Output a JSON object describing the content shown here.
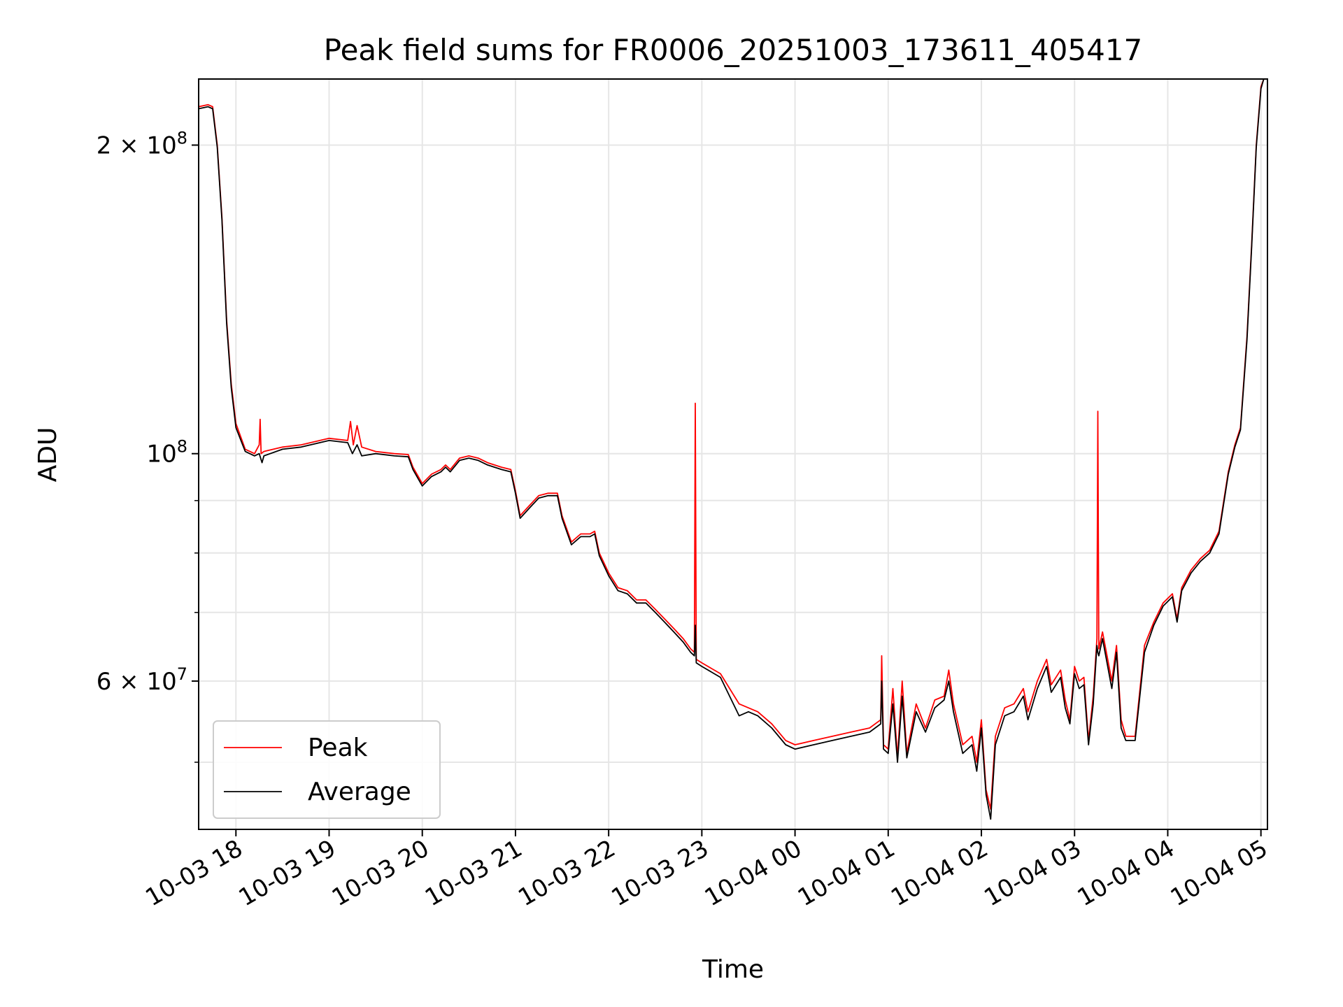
{
  "chart_data": {
    "type": "line",
    "title": "Peak field sums for FR0006_20251003_173611_405417",
    "xlabel": "Time",
    "ylabel": "ADU",
    "yscale": "log",
    "ylim": [
      43000000,
      232000000
    ],
    "xlim_hours": [
      17.6,
      29.07
    ],
    "grid": true,
    "legend_loc": "lower left",
    "x_ticks": [
      {
        "label": "10-03 18",
        "hour": 18
      },
      {
        "label": "10-03 19",
        "hour": 19
      },
      {
        "label": "10-03 20",
        "hour": 20
      },
      {
        "label": "10-03 21",
        "hour": 21
      },
      {
        "label": "10-03 22",
        "hour": 22
      },
      {
        "label": "10-03 23",
        "hour": 23
      },
      {
        "label": "10-04 00",
        "hour": 24
      },
      {
        "label": "10-04 01",
        "hour": 25
      },
      {
        "label": "10-04 02",
        "hour": 26
      },
      {
        "label": "10-04 03",
        "hour": 27
      },
      {
        "label": "10-04 04",
        "hour": 28
      },
      {
        "label": "10-04 05",
        "hour": 29
      }
    ],
    "y_major_ticks": [
      {
        "value": 60000000,
        "base": "6 × 10",
        "exp": "7"
      },
      {
        "value": 100000000,
        "base": "10",
        "exp": "8"
      },
      {
        "value": 200000000,
        "base": "2 × 10",
        "exp": "8"
      }
    ],
    "y_minor_ticks": [
      50000000,
      70000000,
      80000000,
      90000000
    ],
    "series": [
      {
        "name": "Peak",
        "color": "#ff0000",
        "points": [
          [
            17.6,
            218000000
          ],
          [
            17.7,
            219000000
          ],
          [
            17.75,
            218000000
          ],
          [
            17.8,
            200000000
          ],
          [
            17.85,
            170000000
          ],
          [
            17.9,
            135000000
          ],
          [
            17.95,
            117000000
          ],
          [
            18.0,
            107000000
          ],
          [
            18.1,
            101000000
          ],
          [
            18.2,
            100000000
          ],
          [
            18.25,
            102000000
          ],
          [
            18.26,
            108000000
          ],
          [
            18.27,
            100000000
          ],
          [
            18.3,
            100500000
          ],
          [
            18.5,
            101500000
          ],
          [
            18.7,
            102000000
          ],
          [
            18.9,
            103000000
          ],
          [
            19.0,
            103500000
          ],
          [
            19.2,
            103000000
          ],
          [
            19.23,
            107500000
          ],
          [
            19.26,
            102000000
          ],
          [
            19.3,
            106500000
          ],
          [
            19.35,
            101500000
          ],
          [
            19.5,
            100500000
          ],
          [
            19.7,
            100000000
          ],
          [
            19.85,
            99800000
          ],
          [
            19.9,
            97000000
          ],
          [
            20.0,
            93500000
          ],
          [
            20.1,
            95500000
          ],
          [
            20.2,
            96500000
          ],
          [
            20.25,
            97500000
          ],
          [
            20.3,
            96500000
          ],
          [
            20.4,
            99000000
          ],
          [
            20.5,
            99500000
          ],
          [
            20.6,
            99000000
          ],
          [
            20.7,
            98000000
          ],
          [
            20.85,
            97000000
          ],
          [
            20.95,
            96500000
          ],
          [
            21.0,
            92000000
          ],
          [
            21.05,
            87000000
          ],
          [
            21.15,
            89000000
          ],
          [
            21.25,
            91000000
          ],
          [
            21.35,
            91500000
          ],
          [
            21.45,
            91500000
          ],
          [
            21.5,
            87000000
          ],
          [
            21.6,
            82000000
          ],
          [
            21.7,
            83500000
          ],
          [
            21.8,
            83500000
          ],
          [
            21.85,
            84000000
          ],
          [
            21.9,
            80000000
          ],
          [
            22.0,
            76500000
          ],
          [
            22.1,
            74000000
          ],
          [
            22.2,
            73500000
          ],
          [
            22.3,
            72000000
          ],
          [
            22.4,
            72000000
          ],
          [
            22.5,
            70500000
          ],
          [
            22.6,
            69000000
          ],
          [
            22.7,
            67500000
          ],
          [
            22.8,
            66000000
          ],
          [
            22.88,
            64500000
          ],
          [
            22.92,
            64000000
          ],
          [
            22.93,
            112000000
          ],
          [
            22.94,
            63000000
          ],
          [
            23.0,
            62500000
          ],
          [
            23.2,
            61000000
          ],
          [
            23.4,
            57000000
          ],
          [
            23.5,
            56500000
          ],
          [
            23.6,
            56000000
          ],
          [
            23.75,
            54500000
          ],
          [
            23.9,
            52500000
          ],
          [
            24.0,
            52000000
          ],
          [
            24.2,
            52500000
          ],
          [
            24.4,
            53000000
          ],
          [
            24.6,
            53500000
          ],
          [
            24.8,
            54000000
          ],
          [
            24.92,
            55000000
          ],
          [
            24.93,
            63500000
          ],
          [
            24.95,
            52000000
          ],
          [
            25.0,
            51500000
          ],
          [
            25.05,
            59000000
          ],
          [
            25.1,
            50500000
          ],
          [
            25.15,
            60000000
          ],
          [
            25.2,
            51000000
          ],
          [
            25.3,
            57000000
          ],
          [
            25.4,
            54000000
          ],
          [
            25.5,
            57500000
          ],
          [
            25.6,
            58000000
          ],
          [
            25.65,
            61500000
          ],
          [
            25.7,
            57000000
          ],
          [
            25.8,
            52000000
          ],
          [
            25.9,
            53000000
          ],
          [
            25.95,
            50000000
          ],
          [
            26.0,
            55000000
          ],
          [
            26.05,
            47000000
          ],
          [
            26.1,
            45000000
          ],
          [
            26.15,
            53000000
          ],
          [
            26.25,
            56500000
          ],
          [
            26.35,
            57000000
          ],
          [
            26.45,
            59000000
          ],
          [
            26.5,
            56000000
          ],
          [
            26.6,
            60000000
          ],
          [
            26.7,
            63000000
          ],
          [
            26.75,
            59500000
          ],
          [
            26.85,
            61500000
          ],
          [
            26.9,
            57500000
          ],
          [
            26.95,
            55000000
          ],
          [
            27.0,
            62000000
          ],
          [
            27.05,
            60000000
          ],
          [
            27.1,
            60500000
          ],
          [
            27.15,
            52500000
          ],
          [
            27.2,
            58000000
          ],
          [
            27.24,
            66000000
          ],
          [
            27.25,
            110000000
          ],
          [
            27.26,
            64500000
          ],
          [
            27.3,
            67000000
          ],
          [
            27.4,
            60000000
          ],
          [
            27.45,
            65000000
          ],
          [
            27.5,
            55000000
          ],
          [
            27.55,
            53000000
          ],
          [
            27.65,
            53000000
          ],
          [
            27.75,
            65000000
          ],
          [
            27.85,
            68500000
          ],
          [
            27.95,
            71500000
          ],
          [
            28.05,
            73000000
          ],
          [
            28.1,
            69000000
          ],
          [
            28.15,
            74000000
          ],
          [
            28.25,
            77000000
          ],
          [
            28.35,
            79000000
          ],
          [
            28.45,
            80500000
          ],
          [
            28.55,
            84000000
          ],
          [
            28.65,
            96000000
          ],
          [
            28.72,
            102000000
          ],
          [
            28.78,
            106000000
          ],
          [
            28.85,
            130000000
          ],
          [
            28.9,
            160000000
          ],
          [
            28.95,
            200000000
          ],
          [
            29.0,
            228000000
          ],
          [
            29.03,
            232000000
          ]
        ]
      },
      {
        "name": "Average",
        "color": "#000000",
        "points": [
          [
            17.6,
            217000000
          ],
          [
            17.7,
            218000000
          ],
          [
            17.75,
            217000000
          ],
          [
            17.8,
            199000000
          ],
          [
            17.85,
            169000000
          ],
          [
            17.9,
            134000000
          ],
          [
            17.95,
            116000000
          ],
          [
            18.0,
            106000000
          ],
          [
            18.1,
            100500000
          ],
          [
            18.2,
            99500000
          ],
          [
            18.25,
            100000000
          ],
          [
            18.28,
            98000000
          ],
          [
            18.3,
            99500000
          ],
          [
            18.5,
            101000000
          ],
          [
            18.7,
            101500000
          ],
          [
            18.9,
            102500000
          ],
          [
            19.0,
            103000000
          ],
          [
            19.2,
            102500000
          ],
          [
            19.25,
            100000000
          ],
          [
            19.3,
            102000000
          ],
          [
            19.35,
            99500000
          ],
          [
            19.5,
            100000000
          ],
          [
            19.7,
            99500000
          ],
          [
            19.85,
            99300000
          ],
          [
            19.9,
            96500000
          ],
          [
            20.0,
            93000000
          ],
          [
            20.1,
            95000000
          ],
          [
            20.2,
            96000000
          ],
          [
            20.25,
            97000000
          ],
          [
            20.3,
            96000000
          ],
          [
            20.4,
            98500000
          ],
          [
            20.5,
            99000000
          ],
          [
            20.6,
            98500000
          ],
          [
            20.7,
            97500000
          ],
          [
            20.85,
            96500000
          ],
          [
            20.95,
            96000000
          ],
          [
            21.0,
            91500000
          ],
          [
            21.05,
            86500000
          ],
          [
            21.15,
            88500000
          ],
          [
            21.25,
            90500000
          ],
          [
            21.35,
            91000000
          ],
          [
            21.45,
            91000000
          ],
          [
            21.5,
            86500000
          ],
          [
            21.6,
            81500000
          ],
          [
            21.7,
            83000000
          ],
          [
            21.8,
            83000000
          ],
          [
            21.85,
            83500000
          ],
          [
            21.9,
            79500000
          ],
          [
            22.0,
            76000000
          ],
          [
            22.1,
            73500000
          ],
          [
            22.2,
            73000000
          ],
          [
            22.3,
            71500000
          ],
          [
            22.4,
            71500000
          ],
          [
            22.5,
            70000000
          ],
          [
            22.6,
            68500000
          ],
          [
            22.7,
            67000000
          ],
          [
            22.8,
            65500000
          ],
          [
            22.88,
            64000000
          ],
          [
            22.92,
            63500000
          ],
          [
            22.93,
            68000000
          ],
          [
            22.94,
            62500000
          ],
          [
            23.0,
            62000000
          ],
          [
            23.2,
            60500000
          ],
          [
            23.4,
            55500000
          ],
          [
            23.5,
            56000000
          ],
          [
            23.6,
            55500000
          ],
          [
            23.75,
            54000000
          ],
          [
            23.9,
            52000000
          ],
          [
            24.0,
            51500000
          ],
          [
            24.2,
            52000000
          ],
          [
            24.4,
            52500000
          ],
          [
            24.6,
            53000000
          ],
          [
            24.8,
            53500000
          ],
          [
            24.92,
            54500000
          ],
          [
            24.93,
            60000000
          ],
          [
            24.95,
            51500000
          ],
          [
            25.0,
            51000000
          ],
          [
            25.05,
            57000000
          ],
          [
            25.1,
            50000000
          ],
          [
            25.15,
            58000000
          ],
          [
            25.2,
            50500000
          ],
          [
            25.3,
            56000000
          ],
          [
            25.4,
            53500000
          ],
          [
            25.5,
            56500000
          ],
          [
            25.6,
            57500000
          ],
          [
            25.65,
            60000000
          ],
          [
            25.7,
            56000000
          ],
          [
            25.8,
            51000000
          ],
          [
            25.9,
            52000000
          ],
          [
            25.95,
            49000000
          ],
          [
            26.0,
            54000000
          ],
          [
            26.05,
            46500000
          ],
          [
            26.1,
            44000000
          ],
          [
            26.15,
            52000000
          ],
          [
            26.25,
            55500000
          ],
          [
            26.35,
            56000000
          ],
          [
            26.45,
            58000000
          ],
          [
            26.5,
            55000000
          ],
          [
            26.6,
            59000000
          ],
          [
            26.7,
            62000000
          ],
          [
            26.75,
            58500000
          ],
          [
            26.85,
            60500000
          ],
          [
            26.9,
            56500000
          ],
          [
            26.95,
            54500000
          ],
          [
            27.0,
            61000000
          ],
          [
            27.05,
            59000000
          ],
          [
            27.1,
            59500000
          ],
          [
            27.15,
            52000000
          ],
          [
            27.2,
            57000000
          ],
          [
            27.24,
            65000000
          ],
          [
            27.25,
            64000000
          ],
          [
            27.26,
            63500000
          ],
          [
            27.3,
            66000000
          ],
          [
            27.4,
            59000000
          ],
          [
            27.45,
            64000000
          ],
          [
            27.5,
            54000000
          ],
          [
            27.55,
            52500000
          ],
          [
            27.65,
            52500000
          ],
          [
            27.75,
            64000000
          ],
          [
            27.85,
            68000000
          ],
          [
            27.95,
            71000000
          ],
          [
            28.05,
            72500000
          ],
          [
            28.1,
            68500000
          ],
          [
            28.15,
            73500000
          ],
          [
            28.25,
            76500000
          ],
          [
            28.35,
            78500000
          ],
          [
            28.45,
            80000000
          ],
          [
            28.55,
            83500000
          ],
          [
            28.65,
            95500000
          ],
          [
            28.72,
            101500000
          ],
          [
            28.78,
            105500000
          ],
          [
            28.85,
            129000000
          ],
          [
            28.9,
            159000000
          ],
          [
            28.95,
            199000000
          ],
          [
            29.0,
            227000000
          ],
          [
            29.03,
            232000000
          ]
        ]
      }
    ]
  }
}
